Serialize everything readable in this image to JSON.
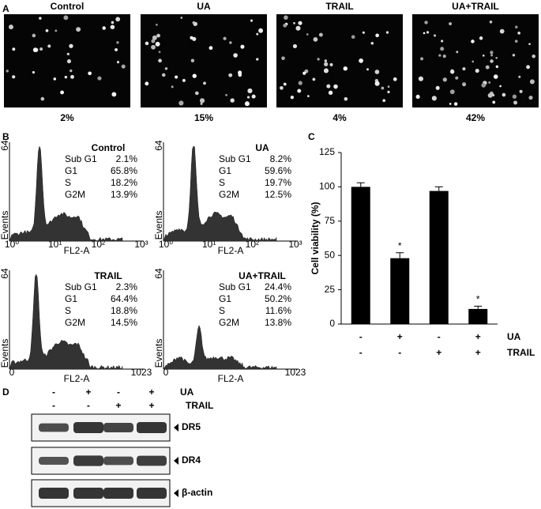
{
  "panel_a": {
    "label": "A",
    "images": [
      {
        "title": "Control",
        "percent": "2%"
      },
      {
        "title": "UA",
        "percent": "15%"
      },
      {
        "title": "TRAIL",
        "percent": "4%"
      },
      {
        "title": "UA+TRAIL",
        "percent": "42%"
      }
    ]
  },
  "panel_b": {
    "label": "B",
    "y_label": "Events",
    "x_label": "FL2-A",
    "y_max": "64",
    "histograms": [
      {
        "title": "Control",
        "x_ticks": [
          "10⁰",
          "10¹",
          "10²",
          "10³"
        ],
        "stats": [
          [
            "Sub G1",
            "2.1%"
          ],
          [
            "G1",
            "65.8%"
          ],
          [
            "S",
            "18.2%"
          ],
          [
            "G2M",
            "13.9%"
          ]
        ]
      },
      {
        "title": "UA",
        "x_ticks": [
          "10⁰",
          "10¹",
          "10²",
          "10³"
        ],
        "stats": [
          [
            "Sub G1",
            "8.2%"
          ],
          [
            "G1",
            "59.6%"
          ],
          [
            "S",
            "19.7%"
          ],
          [
            "G2M",
            "12.5%"
          ]
        ]
      },
      {
        "title": "TRAIL",
        "x_ticks": [
          "0",
          "1023"
        ],
        "stats": [
          [
            "Sub G1",
            "2.3%"
          ],
          [
            "G1",
            "64.4%"
          ],
          [
            "S",
            "18.8%"
          ],
          [
            "G2M",
            "14.5%"
          ]
        ]
      },
      {
        "title": "UA+TRAIL",
        "x_ticks": [
          "0",
          "1023"
        ],
        "stats": [
          [
            "Sub G1",
            "24.4%"
          ],
          [
            "G1",
            "50.2%"
          ],
          [
            "S",
            "11.6%"
          ],
          [
            "G2M",
            "13.8%"
          ]
        ]
      }
    ]
  },
  "chart_data": {
    "type": "bar",
    "label": "C",
    "y_label": "Cell viability (%)",
    "categories": [
      null,
      null,
      null,
      null
    ],
    "values": [
      100,
      48,
      97,
      11
    ],
    "errors": [
      3,
      4,
      3,
      2
    ],
    "significance": [
      null,
      "*",
      null,
      "*"
    ],
    "color": "#000000",
    "treatments": [
      {
        "name": "UA",
        "signs": [
          "-",
          "+",
          "-",
          "+"
        ]
      },
      {
        "name": "TRAIL",
        "signs": [
          "-",
          "-",
          "+",
          "+"
        ]
      }
    ],
    "ylim": [
      0,
      125
    ],
    "yticks": [
      0,
      25,
      50,
      75,
      100,
      125
    ]
  },
  "panel_d": {
    "label": "D",
    "treatments": [
      {
        "name": "UA",
        "signs": [
          "-",
          "+",
          "-",
          "+"
        ]
      },
      {
        "name": "TRAIL",
        "signs": [
          "-",
          "-",
          "+",
          "+"
        ]
      }
    ],
    "blots": [
      "DR5",
      "DR4",
      "β-actin"
    ]
  }
}
